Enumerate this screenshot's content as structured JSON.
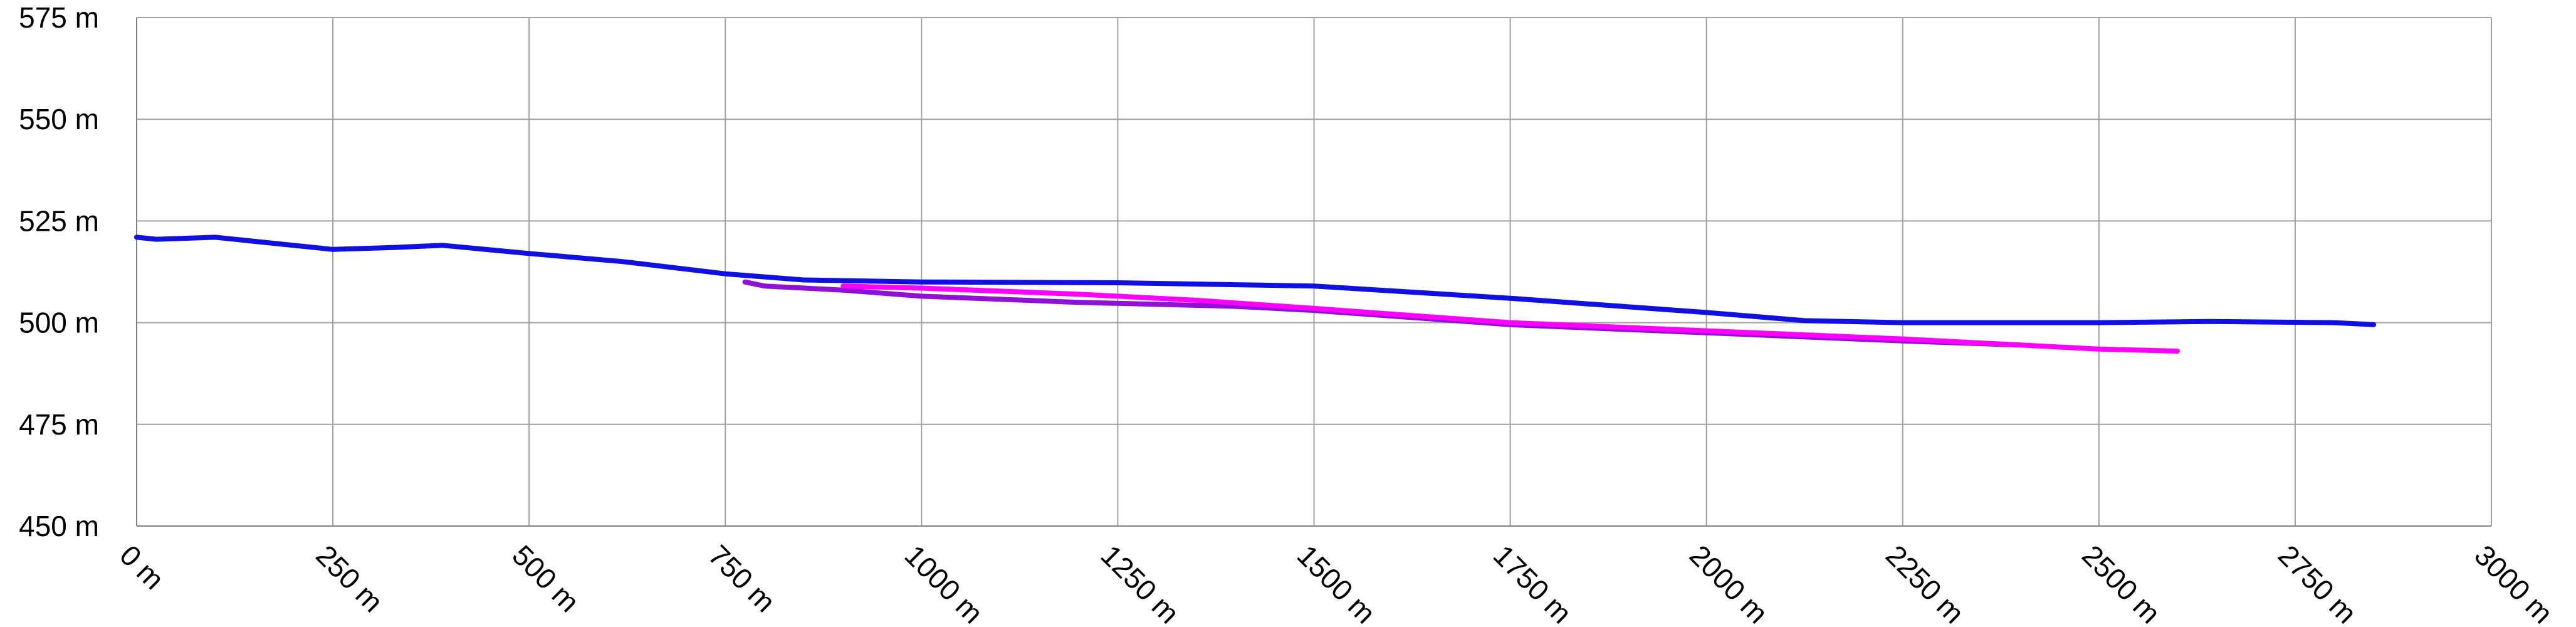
{
  "chart_data": {
    "type": "line",
    "title": "",
    "xlabel": "",
    "ylabel": "",
    "xlim": [
      0,
      3000
    ],
    "ylim": [
      450,
      575
    ],
    "x_ticks": [
      {
        "value": 0,
        "label": "0 m"
      },
      {
        "value": 250,
        "label": "250 m"
      },
      {
        "value": 500,
        "label": "500 m"
      },
      {
        "value": 750,
        "label": "750 m"
      },
      {
        "value": 1000,
        "label": "1000 m"
      },
      {
        "value": 1250,
        "label": "1250 m"
      },
      {
        "value": 1500,
        "label": "1500 m"
      },
      {
        "value": 1750,
        "label": "1750 m"
      },
      {
        "value": 2000,
        "label": "2000 m"
      },
      {
        "value": 2250,
        "label": "2250 m"
      },
      {
        "value": 2500,
        "label": "2500 m"
      },
      {
        "value": 2750,
        "label": "2750 m"
      },
      {
        "value": 3000,
        "label": "3000 m"
      }
    ],
    "y_ticks": [
      {
        "value": 450,
        "label": "450 m"
      },
      {
        "value": 475,
        "label": "475 m"
      },
      {
        "value": 500,
        "label": "500 m"
      },
      {
        "value": 525,
        "label": "525 m"
      },
      {
        "value": 550,
        "label": "550 m"
      },
      {
        "value": 575,
        "label": "575 m"
      }
    ],
    "grid": true,
    "legend": false,
    "series": [
      {
        "color": "#1010e0",
        "points": [
          [
            0,
            521
          ],
          [
            25,
            520.5
          ],
          [
            100,
            521
          ],
          [
            175,
            519.5
          ],
          [
            250,
            518
          ],
          [
            330,
            518.5
          ],
          [
            390,
            519
          ],
          [
            500,
            517
          ],
          [
            620,
            515
          ],
          [
            750,
            512
          ],
          [
            850,
            510.5
          ],
          [
            1000,
            510
          ],
          [
            1250,
            509.8
          ],
          [
            1500,
            509
          ],
          [
            1750,
            506
          ],
          [
            2000,
            502.5
          ],
          [
            2125,
            500.5
          ],
          [
            2250,
            500
          ],
          [
            2500,
            500
          ],
          [
            2640,
            500.3
          ],
          [
            2800,
            500
          ],
          [
            2850,
            499.5
          ]
        ]
      },
      {
        "color": "#9010d8",
        "points": [
          [
            775,
            510
          ],
          [
            800,
            509
          ],
          [
            900,
            508
          ],
          [
            1000,
            506.5
          ],
          [
            1200,
            505
          ],
          [
            1400,
            504
          ],
          [
            1500,
            503
          ],
          [
            1750,
            499.5
          ],
          [
            2000,
            497.5
          ],
          [
            2250,
            495.5
          ],
          [
            2400,
            494.5
          ]
        ]
      },
      {
        "color": "#ff00ff",
        "points": [
          [
            900,
            509
          ],
          [
            1000,
            508.5
          ],
          [
            1200,
            507
          ],
          [
            1350,
            505.5
          ],
          [
            1500,
            503.5
          ],
          [
            1750,
            500
          ],
          [
            2000,
            498
          ],
          [
            2250,
            496
          ],
          [
            2500,
            493.5
          ],
          [
            2600,
            493
          ]
        ]
      }
    ]
  }
}
